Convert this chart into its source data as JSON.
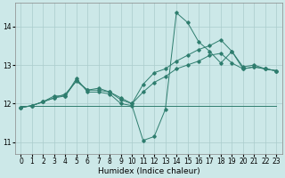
{
  "xlabel": "Humidex (Indice chaleur)",
  "background_color": "#cce8e8",
  "grid_color": "#aacccc",
  "line_color": "#2e7d6e",
  "xlim": [
    -0.5,
    23.5
  ],
  "ylim": [
    10.7,
    14.6
  ],
  "yticks": [
    11,
    12,
    13,
    14
  ],
  "xticks": [
    0,
    1,
    2,
    3,
    4,
    5,
    6,
    7,
    8,
    9,
    10,
    11,
    12,
    13,
    14,
    15,
    16,
    17,
    18,
    19,
    20,
    21,
    22,
    23
  ],
  "series": [
    [
      11.9,
      11.95,
      12.05,
      12.2,
      12.2,
      12.65,
      12.3,
      12.3,
      12.25,
      12.0,
      11.95,
      11.05,
      11.15,
      11.85,
      14.35,
      14.1,
      13.6,
      13.35,
      13.05,
      13.35,
      12.9,
      12.95,
      12.9,
      12.85
    ],
    [
      11.9,
      11.95,
      12.05,
      12.15,
      12.2,
      12.6,
      12.35,
      12.4,
      12.3,
      12.15,
      12.0,
      12.5,
      12.8,
      12.9,
      13.1,
      13.25,
      13.4,
      13.5,
      13.65,
      13.35,
      12.95,
      13.0,
      12.9,
      12.85
    ],
    [
      11.9,
      11.95,
      12.05,
      12.15,
      12.25,
      12.58,
      12.35,
      12.35,
      12.3,
      12.1,
      12.0,
      12.3,
      12.55,
      12.7,
      12.9,
      13.0,
      13.1,
      13.25,
      13.3,
      13.05,
      12.9,
      12.95,
      12.9,
      12.85
    ],
    [
      11.95,
      11.95,
      11.95,
      11.95,
      11.95,
      11.95,
      11.95,
      11.95,
      11.95,
      11.95,
      11.95,
      11.95,
      11.95,
      11.95,
      11.95,
      11.95,
      11.95,
      11.95,
      11.95,
      11.95,
      11.95,
      11.95,
      11.95,
      11.95
    ]
  ],
  "show_markers": [
    true,
    true,
    true,
    false
  ],
  "xlabel_fontsize": 6.5,
  "tick_fontsize": 5.5
}
